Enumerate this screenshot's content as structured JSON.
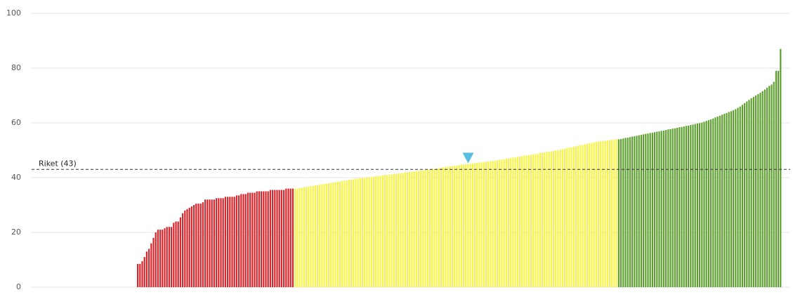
{
  "chart_data": {
    "type": "bar",
    "ylim": [
      0,
      100
    ],
    "yticks": [
      0,
      20,
      40,
      60,
      80,
      100
    ],
    "grid": true,
    "groups": [
      {
        "color": "#d7262b",
        "values": [
          8.5,
          8.5,
          9.5,
          11,
          13,
          14,
          16,
          18,
          20,
          21,
          21,
          21,
          21.5,
          22,
          22,
          22,
          23.5,
          24,
          24,
          25.5,
          27,
          28,
          28.5,
          29,
          29.5,
          30,
          30.5,
          30.5,
          30.5,
          31,
          32,
          32,
          32,
          32,
          32,
          32.5,
          32.5,
          32.5,
          32.5,
          33,
          33,
          33,
          33,
          33,
          33.5,
          33.5,
          34,
          34,
          34,
          34.5,
          34.5,
          34.5,
          34.5,
          35,
          35,
          35,
          35,
          35,
          35,
          35.5,
          35.5,
          35.5,
          35.5,
          35.5,
          35.5,
          35.5,
          36,
          36,
          36,
          36
        ]
      },
      {
        "color": "#f7f34a",
        "values": [
          36,
          36,
          36.2,
          36.3,
          36.5,
          36.6,
          36.8,
          36.9,
          37,
          37.2,
          37.3,
          37.4,
          37.6,
          37.7,
          37.8,
          38,
          38.1,
          38.2,
          38.4,
          38.5,
          38.6,
          38.8,
          38.9,
          39,
          39.2,
          39.3,
          39.4,
          39.6,
          39.7,
          39.8,
          39.9,
          40,
          40,
          40.1,
          40.2,
          40.4,
          40.5,
          40.6,
          40.7,
          40.8,
          41,
          41,
          41.1,
          41.2,
          41.3,
          41.4,
          41.5,
          41.6,
          41.7,
          41.8,
          42,
          42.1,
          42.2,
          42.3,
          42.4,
          42.5,
          42.6,
          42.7,
          42.8,
          42.9,
          43,
          43.1,
          43.2,
          43.4,
          43.5,
          43.6,
          43.8,
          43.9,
          44,
          44.1,
          44.2,
          44.3,
          44.4,
          44.6,
          44.7,
          44.8,
          44.9,
          45,
          45.1,
          45.2,
          45.3,
          45.4,
          45.5,
          45.6,
          45.7,
          45.8,
          45.9,
          46,
          46.1,
          46.2,
          46.4,
          46.5,
          46.6,
          46.8,
          46.9,
          47,
          47.2,
          47.3,
          47.4,
          47.6,
          47.7,
          47.8,
          48,
          48.1,
          48.2,
          48.4,
          48.5,
          48.6,
          48.8,
          49,
          49.1,
          49.2,
          49.4,
          49.5,
          49.6,
          49.8,
          49.9,
          50,
          50.2,
          50.4,
          50.6,
          50.8,
          51,
          51.1,
          51.3,
          51.5,
          51.7,
          51.9,
          52,
          52.2,
          52.4,
          52.6,
          52.7,
          52.9,
          53,
          53.2,
          53.3,
          53.4,
          53.5,
          53.6,
          53.7,
          53.8,
          53.9,
          54
        ]
      },
      {
        "color": "#5ea12e",
        "values": [
          54,
          54.1,
          54.3,
          54.5,
          54.6,
          54.8,
          55,
          55.1,
          55.3,
          55.5,
          55.6,
          55.8,
          56,
          56.1,
          56.3,
          56.4,
          56.6,
          56.8,
          56.9,
          57.1,
          57.2,
          57.4,
          57.6,
          57.7,
          57.9,
          58,
          58.2,
          58.4,
          58.5,
          58.7,
          58.9,
          59,
          59.2,
          59.4,
          59.6,
          59.8,
          59.9,
          60.1,
          60.4,
          60.7,
          61,
          61.3,
          61.6,
          62,
          62.3,
          62.6,
          63,
          63.3,
          63.6,
          64,
          64.3,
          64.6,
          65,
          65.5,
          66,
          66.6,
          67.2,
          67.8,
          68.4,
          69,
          69.5,
          70,
          70.5,
          71,
          71.6,
          72.2,
          72.8,
          73.5,
          74,
          75,
          79,
          79,
          87
        ]
      }
    ],
    "reference": {
      "label": "Riket (43)",
      "value": 43,
      "color": "#333333"
    },
    "highlight": {
      "group": 1,
      "index": 77,
      "color": "#5bbde0"
    }
  }
}
